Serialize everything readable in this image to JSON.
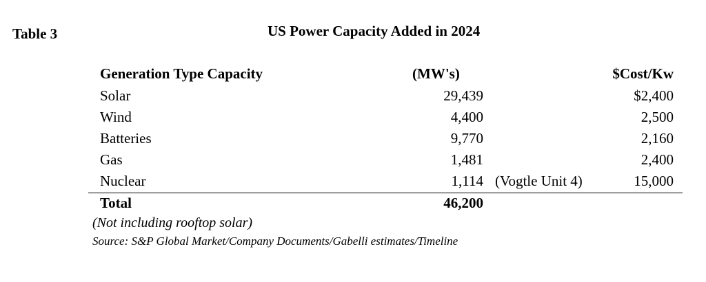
{
  "table_label": "Table 3",
  "title": "US Power Capacity Added in 2024",
  "headers": {
    "type": "Generation Type Capacity",
    "mw": "(MW's)",
    "cost": "$Cost/Kw"
  },
  "rows": [
    {
      "type": "Solar",
      "mw": "29,439",
      "note": "",
      "cost": "$2,400"
    },
    {
      "type": "Wind",
      "mw": "4,400",
      "note": "",
      "cost": "2,500"
    },
    {
      "type": "Batteries",
      "mw": "9,770",
      "note": "",
      "cost": "2,160"
    },
    {
      "type": "Gas",
      "mw": "1,481",
      "note": "",
      "cost": "2,400"
    },
    {
      "type": "Nuclear",
      "mw": "1,114",
      "note": "(Vogtle Unit 4)",
      "cost": "15,000"
    }
  ],
  "total": {
    "label": "Total",
    "mw": "46,200"
  },
  "footnote": "(Not including rooftop solar)",
  "source": "Source: S&P Global Market/Company Documents/Gabelli estimates/Timeline"
}
